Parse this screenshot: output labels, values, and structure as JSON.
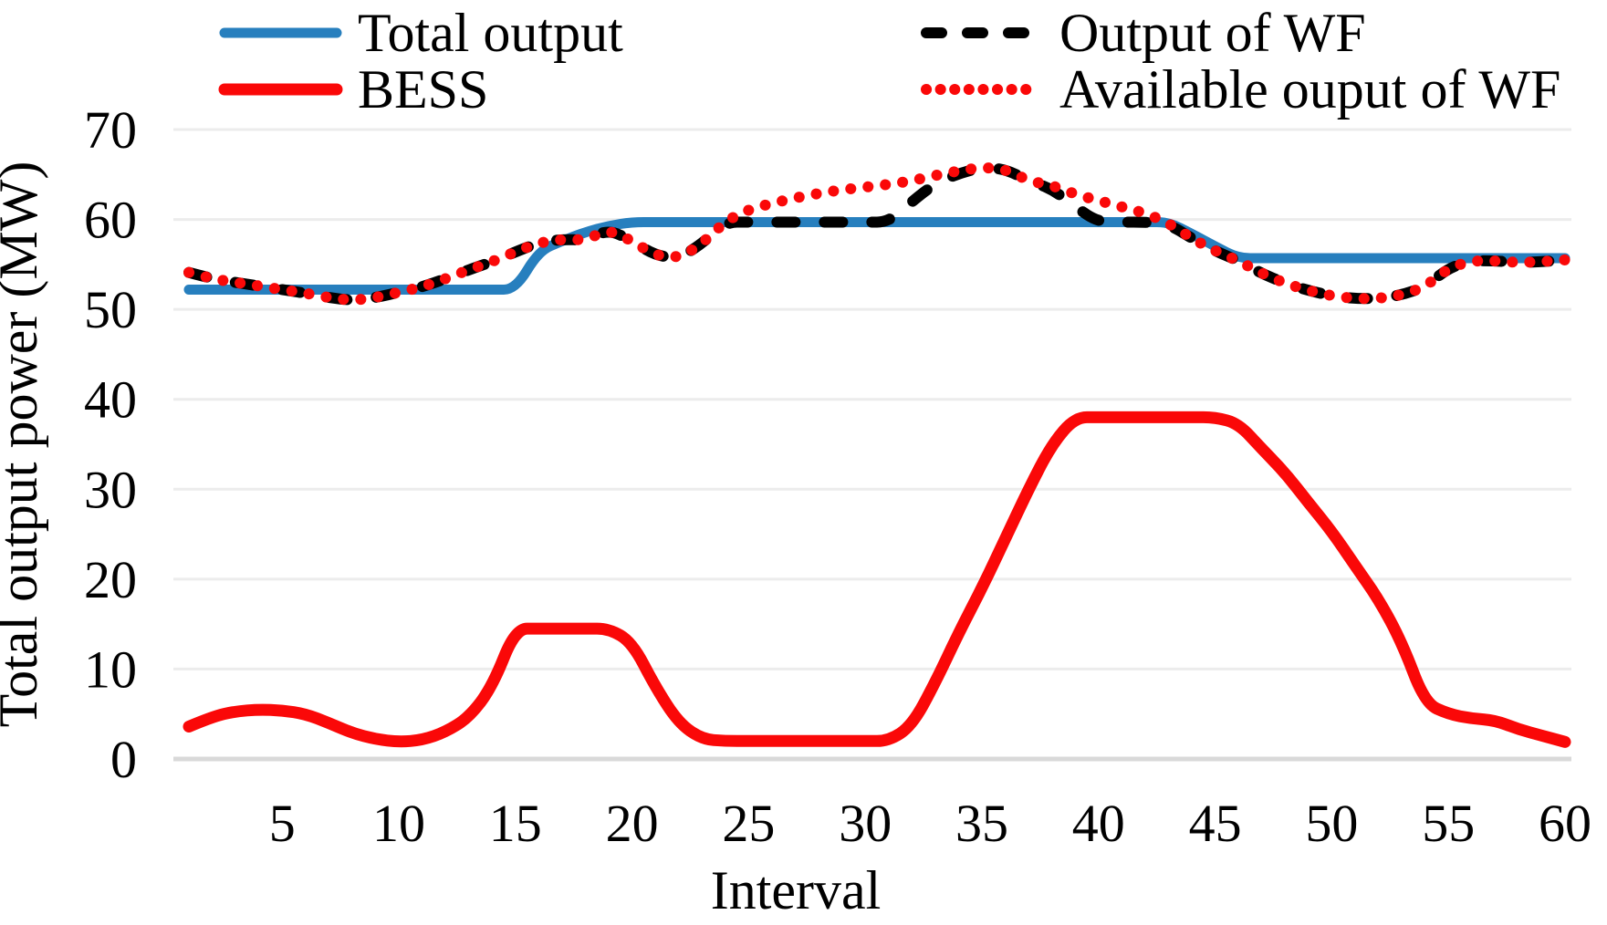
{
  "chart_data": {
    "type": "line",
    "title": "",
    "xlabel": "Interval",
    "ylabel": "Total output power (MW)",
    "xlim": [
      1,
      60
    ],
    "ylim": [
      0,
      70
    ],
    "xticks": [
      5,
      10,
      15,
      20,
      25,
      30,
      35,
      40,
      45,
      50,
      55,
      60
    ],
    "yticks": [
      0,
      10,
      20,
      30,
      40,
      50,
      60,
      70
    ],
    "grid": "horizontal",
    "x": [
      1,
      2,
      3,
      4,
      5,
      6,
      7,
      8,
      9,
      10,
      11,
      12,
      13,
      14,
      15,
      16,
      17,
      18,
      19,
      20,
      21,
      22,
      23,
      24,
      25,
      26,
      27,
      28,
      29,
      30,
      31,
      32,
      33,
      34,
      35,
      36,
      37,
      38,
      39,
      40,
      41,
      42,
      43,
      44,
      45,
      46,
      47,
      48,
      49,
      50,
      51,
      52,
      53,
      54,
      55,
      56,
      57,
      58,
      59,
      60
    ],
    "series": [
      {
        "name": "Total output",
        "color": "#277FBE",
        "style": "solid",
        "width": 11,
        "values": [
          52.2,
          52.2,
          52.2,
          52.2,
          52.2,
          52.2,
          52.2,
          52.2,
          52.2,
          52.2,
          52.2,
          52.2,
          52.2,
          52.2,
          52.2,
          56.5,
          57.6,
          58.6,
          59.3,
          59.7,
          59.7,
          59.7,
          59.7,
          59.7,
          59.7,
          59.7,
          59.7,
          59.7,
          59.7,
          59.7,
          59.7,
          59.7,
          59.7,
          59.7,
          59.7,
          59.7,
          59.7,
          59.7,
          59.7,
          59.7,
          59.7,
          59.7,
          59.7,
          58.4,
          57.0,
          55.7,
          55.7,
          55.7,
          55.7,
          55.7,
          55.7,
          55.7,
          55.7,
          55.7,
          55.7,
          55.7,
          55.7,
          55.7,
          55.7,
          55.7
        ]
      },
      {
        "name": "Output of WF",
        "color": "#000000",
        "style": "dashed",
        "width": 12,
        "values": [
          54.1,
          53.4,
          53.0,
          52.6,
          52.2,
          51.8,
          51.3,
          51.0,
          51.3,
          51.9,
          52.5,
          53.4,
          54.4,
          55.3,
          56.4,
          57.4,
          57.8,
          57.7,
          58.9,
          57.6,
          56.0,
          55.7,
          57.3,
          59.7,
          59.7,
          59.7,
          59.7,
          59.7,
          59.7,
          59.7,
          59.7,
          62.0,
          64.0,
          65.1,
          65.8,
          65.6,
          64.3,
          63.4,
          61.4,
          59.7,
          59.7,
          59.7,
          59.5,
          57.9,
          56.5,
          55.4,
          54.0,
          52.9,
          52.1,
          51.5,
          51.2,
          51.2,
          51.6,
          52.5,
          54.6,
          55.4,
          55.4,
          55.2,
          55.3,
          55.5
        ]
      },
      {
        "name": "Available ouput of WF",
        "color": "#FA0808",
        "style": "dotted",
        "width": 12,
        "values": [
          54.1,
          53.4,
          53.0,
          52.6,
          52.2,
          51.8,
          51.3,
          51.0,
          51.3,
          51.9,
          52.5,
          53.4,
          54.4,
          55.3,
          56.4,
          57.4,
          57.8,
          57.7,
          58.9,
          57.6,
          56.0,
          55.7,
          57.3,
          59.8,
          61.1,
          61.8,
          62.4,
          62.9,
          63.3,
          63.6,
          63.9,
          64.3,
          64.9,
          65.4,
          65.8,
          65.6,
          64.3,
          63.8,
          62.8,
          62.1,
          61.4,
          60.7,
          59.6,
          57.9,
          56.5,
          55.4,
          54.0,
          52.9,
          52.1,
          51.5,
          51.2,
          51.2,
          51.6,
          52.5,
          54.6,
          55.4,
          55.4,
          55.2,
          55.3,
          55.5
        ]
      },
      {
        "name": "BESS",
        "color": "#FA0808",
        "style": "solid",
        "width": 13,
        "values": [
          3.6,
          4.7,
          5.3,
          5.5,
          5.4,
          5.0,
          4.0,
          2.9,
          2.2,
          1.9,
          2.1,
          3.0,
          4.6,
          8.0,
          14.5,
          14.5,
          14.5,
          14.5,
          14.5,
          13.0,
          8.0,
          4.0,
          2.2,
          2.0,
          2.0,
          2.0,
          2.0,
          2.0,
          2.0,
          2.0,
          2.0,
          3.7,
          8.5,
          14.0,
          19.0,
          24.5,
          30.0,
          35.0,
          38.0,
          38.0,
          38.0,
          38.0,
          38.0,
          38.0,
          38.0,
          37.3,
          34.5,
          31.8,
          28.5,
          25.3,
          21.5,
          17.8,
          13.0,
          6.2,
          5.0,
          4.5,
          4.3,
          3.3,
          2.6,
          1.9
        ]
      }
    ],
    "legend": {
      "position": "top",
      "items": [
        {
          "label": "Total output",
          "series": 0
        },
        {
          "label": "BESS",
          "series": 3
        },
        {
          "label": "Output of WF",
          "series": 1
        },
        {
          "label": "Available ouput of WF",
          "series": 2
        }
      ]
    },
    "colors": {
      "gridline": "#ECECEC",
      "zero_axis": "#D9D9D9",
      "background": "#FFFFFF",
      "text": "#000000"
    }
  }
}
